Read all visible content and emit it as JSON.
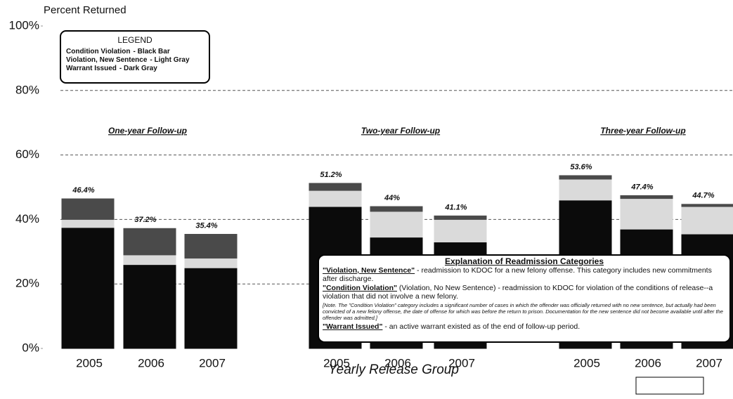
{
  "chart_data": {
    "type": "stacked_bar",
    "y_label": "Percent Returned",
    "x_label": "Yearly Release Group",
    "ylim": [
      0,
      100
    ],
    "yticks": [
      {
        "value": 0,
        "label": "0%"
      },
      {
        "value": 20,
        "label": "20%"
      },
      {
        "value": 40,
        "label": "40%"
      },
      {
        "value": 60,
        "label": "60%"
      },
      {
        "value": 80,
        "label": "80%"
      },
      {
        "value": 100,
        "label": "100%"
      }
    ],
    "grid": true,
    "groups": [
      "One-year Follow-up",
      "Two-year Follow-up",
      "Three-year Follow-up"
    ],
    "categories": [
      "2005",
      "2006",
      "2007",
      "2005",
      "2006",
      "2007",
      "2005",
      "2006",
      "2007"
    ],
    "series": [
      {
        "name": "Condition Violation",
        "color_label": "- Black Bar",
        "color": "#0b0b0b",
        "values": [
          37.5,
          26,
          25,
          44,
          34.5,
          33,
          46,
          37,
          35.5
        ]
      },
      {
        "name": "Violation, New Sentence",
        "color_label": "- Light Gray",
        "color": "#dadada",
        "values": [
          2.5,
          3,
          3,
          5,
          8,
          7,
          6.5,
          9.5,
          8.5
        ]
      },
      {
        "name": "Warrant Issued",
        "color_label": "- Dark Gray",
        "color": "#4a4a4a",
        "values": [
          6.4,
          8.2,
          7.4,
          2.2,
          1.5,
          1.1,
          1.1,
          0.9,
          0.7
        ]
      }
    ],
    "totals": [
      46.4,
      37.2,
      35.4,
      51.2,
      44,
      41.1,
      53.6,
      47.4,
      44.7
    ],
    "value_labels": [
      "46.4%",
      "37.2%",
      "35.4%",
      "51.2%",
      "44%",
      "41.1%",
      "53.6%",
      "47.4%",
      "44.7%"
    ],
    "legend": {
      "title": "LEGEND"
    },
    "explanation": {
      "title": "Explanation of Readmission Categories",
      "items": [
        {
          "term": "\"Violation, New Sentence\"",
          "text": " - readmission to KDOC for a new felony offense.  This category includes new commitments after discharge."
        },
        {
          "term": "\"Condition Violation\"",
          "text": " (Violation, No New Sentence) - readmission to KDOC for violation of the conditions of release--a violation that did not involve a new felony."
        },
        {
          "term": "\"Warrant Issued\"",
          "text": " - an active warrant existed as of the end of follow-up period."
        }
      ],
      "note": "[Note.  The \"Condition Violation\" category includes a significant number of cases in which the offender was officially returned with no new sentence, but actually had been convicted of a new felony offense, the date of offense for which was before the return to prison.  Documentation for the new sentence did not become available until after the offender was admitted.]"
    }
  }
}
